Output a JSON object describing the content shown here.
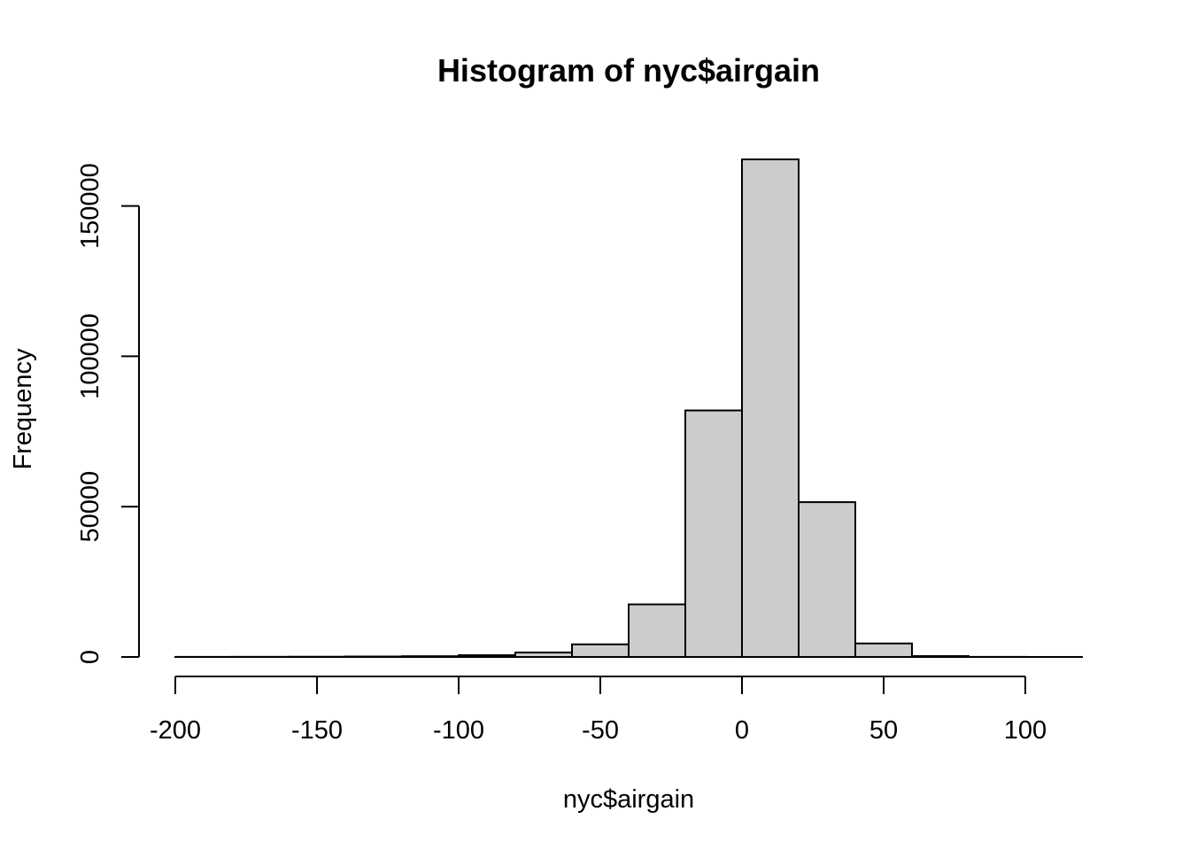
{
  "chart_data": {
    "type": "bar",
    "title": "Histogram of nyc$airgain",
    "xlabel": "nyc$airgain",
    "ylabel": "Frequency",
    "bin_edges": [
      -200,
      -180,
      -160,
      -140,
      -120,
      -100,
      -80,
      -60,
      -40,
      -20,
      0,
      20,
      40,
      60,
      80,
      100,
      120
    ],
    "values": [
      30,
      50,
      80,
      150,
      250,
      600,
      1500,
      4200,
      17500,
      82000,
      165500,
      51500,
      4500,
      300,
      30,
      10
    ],
    "xlim": [
      -200,
      120
    ],
    "ylim": [
      0,
      165500
    ],
    "xticks": [
      -200,
      -150,
      -100,
      -50,
      0,
      50,
      100
    ],
    "xtick_labels": [
      "-200",
      "-150",
      "-100",
      "-50",
      "0",
      "50",
      "100"
    ],
    "yticks": [
      0,
      50000,
      100000,
      150000
    ],
    "ytick_labels": [
      "0",
      "50000",
      "100000",
      "150000"
    ],
    "bar_color": "#cccccc",
    "grid": false,
    "legend": false
  }
}
